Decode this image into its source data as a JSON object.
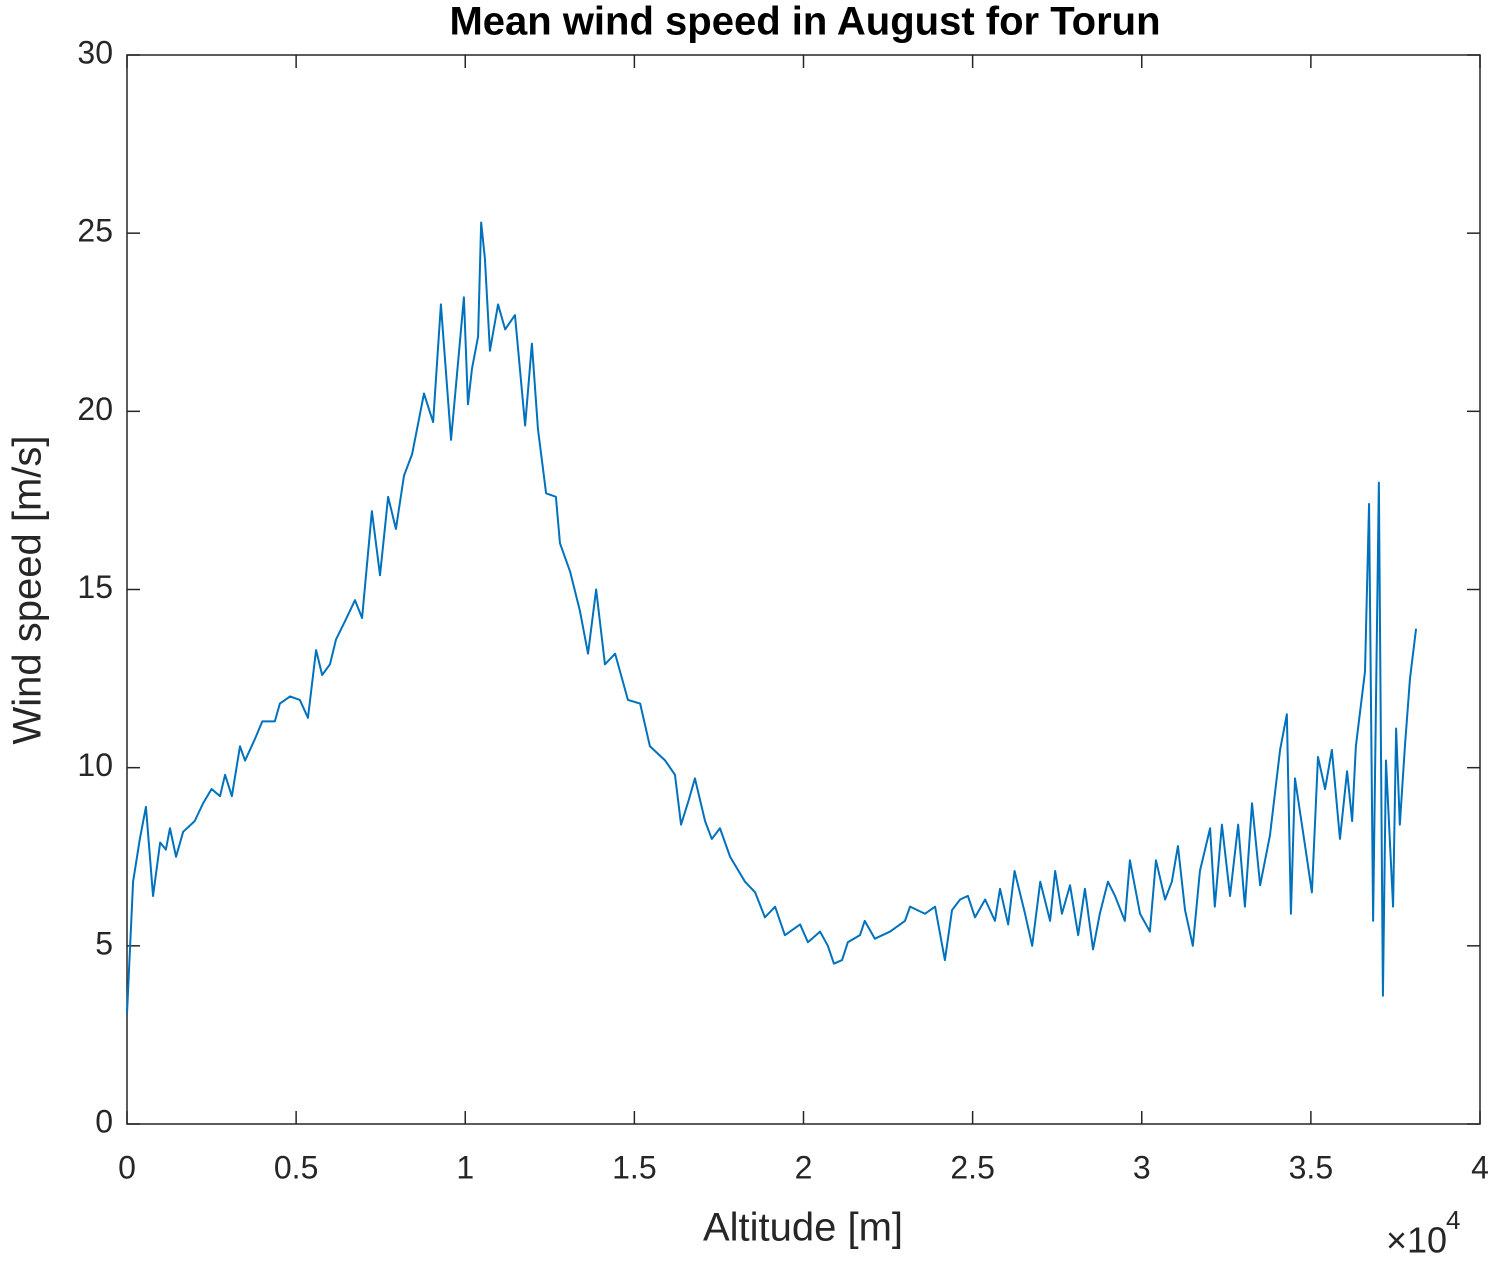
{
  "chart_data": {
    "type": "line",
    "title": "Mean wind speed in August for Torun",
    "x_label": "Altitude [m]",
    "y_label": "Wind speed [m/s]",
    "x_multiplier": {
      "base": "×10",
      "power": "4"
    },
    "xlim": [
      0,
      4
    ],
    "ylim": [
      0,
      30
    ],
    "xticks": [
      0,
      0.5,
      1,
      1.5,
      2,
      2.5,
      3,
      3.5,
      4
    ],
    "yticks": [
      0,
      5,
      10,
      15,
      20,
      25,
      30
    ],
    "grid": false,
    "x": [
      0,
      0.018,
      0.038,
      0.056,
      0.077,
      0.098,
      0.115,
      0.127,
      0.145,
      0.166,
      0.2,
      0.225,
      0.25,
      0.275,
      0.29,
      0.31,
      0.334,
      0.349,
      0.378,
      0.4,
      0.437,
      0.452,
      0.482,
      0.511,
      0.535,
      0.559,
      0.577,
      0.6,
      0.618,
      0.644,
      0.674,
      0.695,
      0.724,
      0.748,
      0.772,
      0.795,
      0.819,
      0.843,
      0.878,
      0.905,
      0.928,
      0.958,
      0.979,
      0.996,
      1.008,
      1.02,
      1.038,
      1.047,
      1.058,
      1.073,
      1.097,
      1.118,
      1.147,
      1.177,
      1.197,
      1.215,
      1.239,
      1.268,
      1.28,
      1.31,
      1.339,
      1.363,
      1.387,
      1.413,
      1.443,
      1.481,
      1.517,
      1.546,
      1.591,
      1.62,
      1.638,
      1.661,
      1.679,
      1.709,
      1.729,
      1.753,
      1.783,
      1.827,
      1.857,
      1.886,
      1.916,
      1.945,
      1.99,
      2.013,
      2.049,
      2.072,
      2.09,
      2.114,
      2.131,
      2.167,
      2.181,
      2.211,
      2.256,
      2.3,
      2.315,
      2.359,
      2.389,
      2.418,
      2.439,
      2.463,
      2.486,
      2.507,
      2.537,
      2.566,
      2.581,
      2.605,
      2.624,
      2.655,
      2.676,
      2.7,
      2.729,
      2.744,
      2.764,
      2.788,
      2.812,
      2.832,
      2.856,
      2.876,
      2.9,
      2.921,
      2.95,
      2.965,
      2.995,
      3.024,
      3.042,
      3.069,
      3.089,
      3.107,
      3.128,
      3.151,
      3.172,
      3.202,
      3.216,
      3.237,
      3.261,
      3.285,
      3.305,
      3.326,
      3.35,
      3.379,
      3.409,
      3.429,
      3.441,
      3.453,
      3.483,
      3.503,
      3.521,
      3.542,
      3.562,
      3.586,
      3.607,
      3.622,
      3.633,
      3.66,
      3.672,
      3.684,
      3.701,
      3.713,
      3.722,
      3.743,
      3.752,
      3.763,
      3.778,
      3.793,
      3.811
    ],
    "series": [
      {
        "name": "Wind speed",
        "color": "#0072BD",
        "values": [
          3.1,
          6.8,
          8.0,
          8.9,
          6.4,
          7.9,
          7.7,
          8.3,
          7.5,
          8.2,
          8.5,
          9.0,
          9.4,
          9.2,
          9.8,
          9.2,
          10.6,
          10.2,
          10.8,
          11.3,
          11.3,
          11.8,
          12.0,
          11.9,
          11.4,
          13.3,
          12.6,
          12.9,
          13.6,
          14.1,
          14.7,
          14.2,
          17.2,
          15.4,
          17.6,
          16.7,
          18.2,
          18.8,
          20.5,
          19.7,
          23.0,
          19.2,
          21.4,
          23.2,
          20.2,
          21.2,
          22.1,
          25.3,
          24.3,
          21.7,
          23.0,
          22.3,
          22.7,
          19.6,
          21.9,
          19.5,
          17.7,
          17.6,
          16.3,
          15.5,
          14.4,
          13.2,
          15.0,
          12.9,
          13.2,
          11.9,
          11.8,
          10.6,
          10.2,
          9.8,
          8.4,
          9.1,
          9.7,
          8.5,
          8.0,
          8.3,
          7.5,
          6.8,
          6.5,
          5.8,
          6.1,
          5.3,
          5.6,
          5.1,
          5.4,
          5.0,
          4.5,
          4.6,
          5.1,
          5.3,
          5.7,
          5.2,
          5.4,
          5.7,
          6.1,
          5.9,
          6.1,
          4.6,
          6.0,
          6.3,
          6.4,
          5.8,
          6.3,
          5.7,
          6.6,
          5.6,
          7.1,
          5.9,
          5.0,
          6.8,
          5.7,
          7.1,
          5.9,
          6.7,
          5.3,
          6.6,
          4.9,
          5.9,
          6.8,
          6.4,
          5.7,
          7.4,
          5.9,
          5.4,
          7.4,
          6.3,
          6.8,
          7.8,
          6.0,
          5.0,
          7.1,
          8.3,
          6.1,
          8.4,
          6.4,
          8.4,
          6.1,
          9.0,
          6.7,
          8.1,
          10.5,
          11.5,
          5.9,
          9.7,
          7.8,
          6.5,
          10.3,
          9.4,
          10.5,
          8.0,
          9.9,
          8.5,
          10.6,
          12.7,
          17.4,
          5.7,
          18.0,
          3.6,
          10.2,
          6.1,
          11.1,
          8.4,
          10.6,
          12.5,
          13.9
        ]
      }
    ]
  }
}
